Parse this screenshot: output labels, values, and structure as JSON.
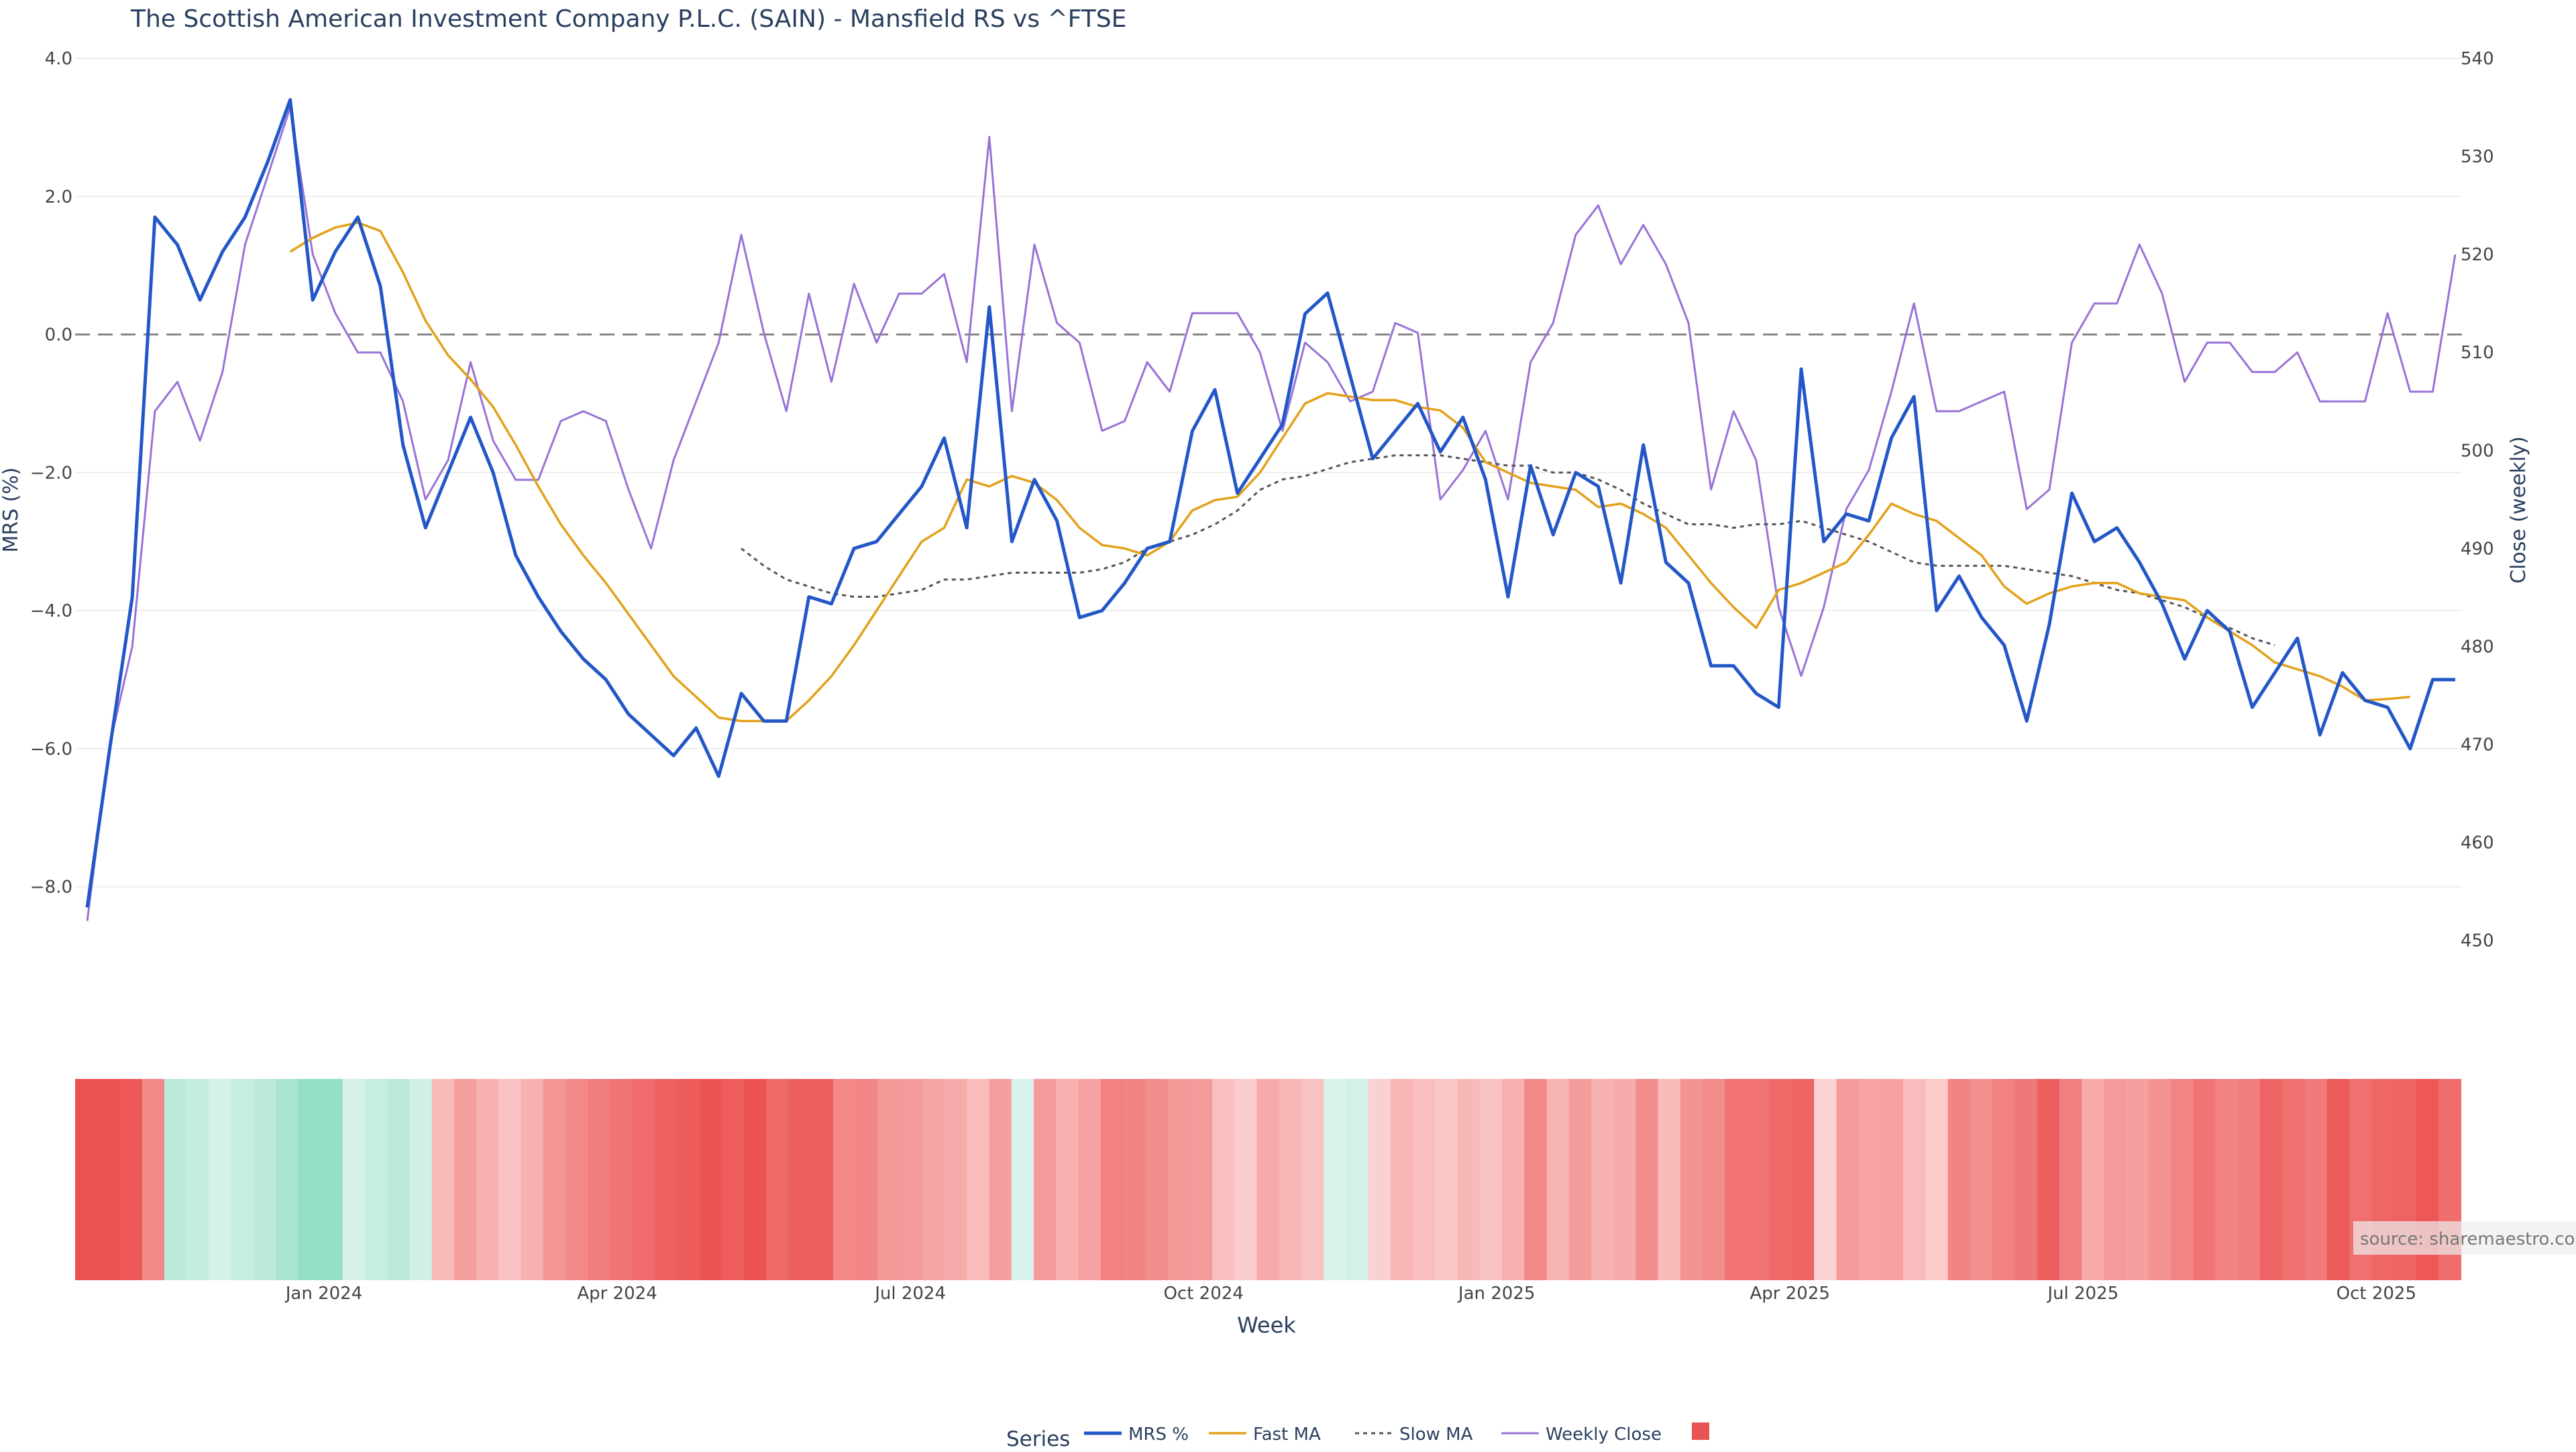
{
  "chart_data": {
    "type": "line",
    "title": "The Scottish American Investment Company P.L.C. (SAIN) - Mansfield RS vs ^FTSE",
    "xlabel": "Week",
    "y_left_label": "MRS (%)",
    "y_right_label": "Close (weekly)",
    "y_left_ticks": [
      "4.0",
      "2.0",
      "0.0",
      "−2.0",
      "−4.0",
      "−6.0",
      "−8.0"
    ],
    "y_left_tick_values": [
      4,
      2,
      0,
      -2,
      -4,
      -6,
      -8
    ],
    "y_right_ticks": [
      "540",
      "530",
      "520",
      "510",
      "500",
      "490",
      "480",
      "470",
      "460",
      "450"
    ],
    "y_right_tick_values": [
      540,
      530,
      520,
      510,
      500,
      490,
      480,
      470,
      460,
      450
    ],
    "y_left_range": [
      -8.5,
      4.0
    ],
    "y_right_range": [
      440,
      540
    ],
    "x_tick_labels": [
      "Jan 2024",
      "Apr 2024",
      "Jul 2024",
      "Oct 2024",
      "Jan 2025",
      "Apr 2025",
      "Jul 2025",
      "Oct 2025"
    ],
    "x_tick_weeks": [
      10.5,
      23.5,
      36.5,
      49.5,
      62.5,
      75.5,
      88.5,
      101.5
    ],
    "zero_line": 0,
    "legend_title": "Series",
    "legend_position": "bottom-center",
    "source_note": "source: sharemaestro.com",
    "colors": {
      "mrs": "#2357c8",
      "fast_ma": "#e3a11b",
      "slow_ma": "#555555",
      "weekly_close": "#9a72d6",
      "heat_swatch": "#e85454",
      "zero_line": "#888888",
      "grid": "#eeeeee"
    },
    "series": [
      {
        "name": "MRS %",
        "axis": "left",
        "values": [
          -8.3,
          -6.0,
          -3.8,
          1.7,
          1.3,
          0.5,
          1.2,
          1.7,
          2.5,
          3.4,
          0.5,
          1.2,
          1.7,
          0.7,
          -1.6,
          -2.8,
          -2.0,
          -1.2,
          -2.0,
          -3.2,
          -3.8,
          -4.3,
          -4.7,
          -5.0,
          -5.5,
          -5.8,
          -6.1,
          -5.7,
          -6.4,
          -5.2,
          -5.6,
          -5.6,
          -3.8,
          -3.9,
          -3.1,
          -3.0,
          -2.6,
          -2.2,
          -1.5,
          -2.8,
          0.4,
          -3.0,
          -2.1,
          -2.7,
          -4.1,
          -4.0,
          -3.6,
          -3.1,
          -3.0,
          -1.4,
          -0.8,
          -2.3,
          -1.8,
          -1.3,
          0.3,
          0.6,
          -0.6,
          -1.8,
          -1.4,
          -1.0,
          -1.7,
          -1.2,
          -2.1,
          -3.8,
          -1.9,
          -2.9,
          -2.0,
          -2.2,
          -3.6,
          -1.6,
          -3.3,
          -3.6,
          -4.8,
          -4.8,
          -5.2,
          -5.4,
          -0.5,
          -3.0,
          -2.6,
          -2.7,
          -1.5,
          -0.9,
          -4.0,
          -3.5,
          -4.1,
          -4.5,
          -5.6,
          -4.2,
          -2.3,
          -3.0,
          -2.8,
          -3.3,
          -3.9,
          -4.7,
          -4.0,
          -4.3,
          -5.4,
          -4.9,
          -4.4,
          -5.8,
          -4.9,
          -5.3,
          -5.4,
          -6.0,
          -5.0,
          -5.0
        ]
      },
      {
        "name": "Fast MA",
        "axis": "left",
        "start_index": 9,
        "values": [
          1.2,
          1.4,
          1.55,
          1.62,
          1.5,
          0.9,
          0.2,
          -0.3,
          -0.65,
          -1.05,
          -1.6,
          -2.2,
          -2.75,
          -3.2,
          -3.6,
          -4.05,
          -4.5,
          -4.95,
          -5.25,
          -5.55,
          -5.6,
          -5.6,
          -5.6,
          -5.3,
          -4.95,
          -4.5,
          -4.0,
          -3.5,
          -3.0,
          -2.8,
          -2.1,
          -2.2,
          -2.05,
          -2.15,
          -2.4,
          -2.8,
          -3.05,
          -3.1,
          -3.2,
          -3.0,
          -2.55,
          -2.4,
          -2.35,
          -2.0,
          -1.5,
          -1.0,
          -0.85,
          -0.9,
          -0.95,
          -0.95,
          -1.05,
          -1.1,
          -1.35,
          -1.85,
          -2.0,
          -2.15,
          -2.2,
          -2.25,
          -2.5,
          -2.45,
          -2.6,
          -2.8,
          -3.2,
          -3.6,
          -3.95,
          -4.25,
          -3.7,
          -3.6,
          -3.45,
          -3.3,
          -2.9,
          -2.45,
          -2.6,
          -2.7,
          -2.95,
          -3.2,
          -3.65,
          -3.9,
          -3.75,
          -3.65,
          -3.6,
          -3.6,
          -3.75,
          -3.8,
          -3.85,
          -4.1,
          -4.3,
          -4.5,
          -4.75,
          -4.85,
          -4.95,
          -5.1,
          -5.3,
          -5.28,
          -5.25
        ]
      },
      {
        "name": "Slow MA",
        "axis": "left",
        "start_index": 29,
        "values": [
          -3.1,
          -3.35,
          -3.55,
          -3.65,
          -3.75,
          -3.8,
          -3.8,
          -3.75,
          -3.7,
          -3.55,
          -3.55,
          -3.5,
          -3.45,
          -3.45,
          -3.45,
          -3.45,
          -3.4,
          -3.3,
          -3.1,
          -3.0,
          -2.9,
          -2.75,
          -2.55,
          -2.25,
          -2.1,
          -2.05,
          -1.95,
          -1.85,
          -1.8,
          -1.75,
          -1.75,
          -1.75,
          -1.8,
          -1.85,
          -1.9,
          -1.9,
          -2.0,
          -2.0,
          -2.1,
          -2.25,
          -2.45,
          -2.6,
          -2.75,
          -2.75,
          -2.8,
          -2.75,
          -2.75,
          -2.7,
          -2.8,
          -2.9,
          -3.0,
          -3.15,
          -3.3,
          -3.35,
          -3.35,
          -3.35,
          -3.35,
          -3.4,
          -3.45,
          -3.5,
          -3.6,
          -3.7,
          -3.75,
          -3.85,
          -3.95,
          -4.1,
          -4.25,
          -4.4,
          -4.5
        ]
      },
      {
        "name": "Weekly Close",
        "axis": "right",
        "values": [
          452,
          470,
          480,
          504,
          507,
          501,
          508,
          521,
          528,
          535,
          520,
          514,
          510,
          510,
          505,
          495,
          499,
          509,
          501,
          497,
          497,
          503,
          504,
          503,
          496,
          490,
          499,
          505,
          511,
          522,
          512,
          504,
          516,
          507,
          517,
          511,
          516,
          516,
          518,
          509,
          532,
          504,
          521,
          513,
          511,
          502,
          503,
          509,
          506,
          514,
          514,
          514,
          510,
          502,
          511,
          509,
          505,
          506,
          513,
          512,
          495,
          498,
          502,
          495,
          509,
          513,
          522,
          525,
          519,
          523,
          519,
          513,
          496,
          504,
          499,
          484,
          477,
          484,
          494,
          498,
          506,
          515,
          504,
          504,
          505,
          506,
          494,
          496,
          511,
          515,
          515,
          521,
          516,
          507,
          511,
          511,
          508,
          508,
          510,
          505,
          505,
          505,
          514,
          506,
          506,
          520
        ]
      }
    ],
    "heatmap_strip": {
      "colorscale": "diverging: red = negative MRS, green = positive MRS",
      "values": [
        -8.3,
        -8.3,
        -6.0,
        -3.8,
        1.7,
        1.3,
        0.5,
        1.2,
        1.7,
        2.5,
        3.4,
        3.4,
        0.5,
        1.2,
        1.7,
        0.7,
        -1.6,
        -2.8,
        -2.0,
        -1.2,
        -2.0,
        -3.2,
        -3.8,
        -4.3,
        -4.7,
        -5.0,
        -5.5,
        -5.8,
        -6.1,
        -5.7,
        -6.4,
        -5.2,
        -5.6,
        -5.6,
        -3.8,
        -3.9,
        -3.1,
        -3.0,
        -2.6,
        -2.2,
        -1.5,
        -2.8,
        0.4,
        -3.0,
        -2.1,
        -2.7,
        -4.1,
        -4.0,
        -3.6,
        -3.1,
        -3.0,
        -1.4,
        -0.8,
        -2.3,
        -1.8,
        -1.3,
        0.3,
        0.6,
        -0.6,
        -1.8,
        -1.4,
        -1.0,
        -1.7,
        -1.2,
        -2.1,
        -3.8,
        -1.9,
        -2.9,
        -2.0,
        -2.2,
        -3.6,
        -1.6,
        -3.3,
        -3.6,
        -4.8,
        -4.8,
        -5.2,
        -5.4,
        -0.5,
        -3.0,
        -2.6,
        -2.7,
        -1.5,
        -0.9,
        -4.0,
        -3.5,
        -4.1,
        -4.5,
        -5.6,
        -4.2,
        -2.3,
        -3.0,
        -2.8,
        -3.3,
        -3.9,
        -4.7,
        -4.0,
        -4.3,
        -5.4,
        -4.9,
        -4.4,
        -5.8,
        -4.9,
        -5.3,
        -5.4,
        -6.0,
        -5.0
      ]
    }
  }
}
